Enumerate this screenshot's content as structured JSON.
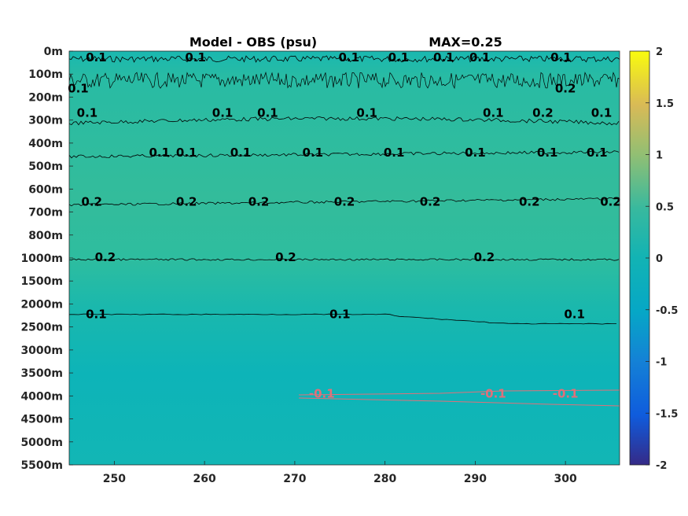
{
  "chart_data": {
    "type": "heatmap",
    "title": "Model - OBS (psu)",
    "title_right": "MAX=0.25",
    "x_ticks": [
      250,
      260,
      270,
      280,
      290,
      300
    ],
    "xlim": [
      245,
      306
    ],
    "y_ticks": [
      "0m",
      "100m",
      "200m",
      "300m",
      "400m",
      "500m",
      "600m",
      "700m",
      "800m",
      "1000m",
      "1500m",
      "2000m",
      "2500m",
      "3000m",
      "3500m",
      "4000m",
      "4500m",
      "5000m",
      "5500m"
    ],
    "colorbar": {
      "ticks": [
        "2",
        "1.5",
        "1",
        "0.5",
        "0",
        "-0.5",
        "-1",
        "-1.5",
        "-2"
      ],
      "range": [
        -2,
        2
      ],
      "colormap": "parula"
    },
    "contours": [
      {
        "level": "0.1",
        "color": "#000000",
        "depth": "0m",
        "labels": [
          {
            "text": "0.1",
            "x": 248,
            "depth": "0m"
          },
          {
            "text": "0.1",
            "x": 259,
            "depth": "0m"
          },
          {
            "text": "0.1",
            "x": 276,
            "depth": "0m"
          },
          {
            "text": "0.1",
            "x": 281.5,
            "depth": "0m"
          },
          {
            "text": "0.1",
            "x": 286.5,
            "depth": "0m"
          },
          {
            "text": "0.1",
            "x": 290.5,
            "depth": "0m"
          },
          {
            "text": "0.1",
            "x": 299.5,
            "depth": "0m"
          }
        ]
      },
      {
        "level": "0.1",
        "color": "#000000",
        "depth": "100m-200m",
        "labels": [
          {
            "text": "0.1",
            "x": 246,
            "depth": "200m"
          }
        ]
      },
      {
        "level": "0.2",
        "color": "#000000",
        "depth": "100m-200m",
        "labels": [
          {
            "text": "0.2",
            "x": 300,
            "depth": "200m"
          }
        ]
      },
      {
        "level": "0.1",
        "color": "#000000",
        "depth": "300m",
        "labels": [
          {
            "text": "0.1",
            "x": 247,
            "depth": "300m"
          },
          {
            "text": "0.1",
            "x": 262,
            "depth": "300m"
          },
          {
            "text": "0.1",
            "x": 267,
            "depth": "300m"
          },
          {
            "text": "0.1",
            "x": 278,
            "depth": "300m"
          },
          {
            "text": "0.1",
            "x": 292,
            "depth": "300m"
          },
          {
            "text": "0.1",
            "x": 304,
            "depth": "300m"
          }
        ]
      },
      {
        "level": "0.2",
        "color": "#000000",
        "depth": "300m",
        "labels": [
          {
            "text": "0.2",
            "x": 297.5,
            "depth": "300m"
          }
        ]
      },
      {
        "level": "0.1",
        "color": "#000000",
        "depth": "500m",
        "labels": [
          {
            "text": "0.1",
            "x": 255,
            "depth": "500m"
          },
          {
            "text": "0.1",
            "x": 258,
            "depth": "500m"
          },
          {
            "text": "0.1",
            "x": 264,
            "depth": "500m"
          },
          {
            "text": "0.1",
            "x": 272,
            "depth": "500m"
          },
          {
            "text": "0.1",
            "x": 281,
            "depth": "500m"
          },
          {
            "text": "0.1",
            "x": 290,
            "depth": "500m"
          },
          {
            "text": "0.1",
            "x": 298,
            "depth": "500m"
          },
          {
            "text": "0.1",
            "x": 303.5,
            "depth": "500m"
          }
        ]
      },
      {
        "level": "0.2",
        "color": "#000000",
        "depth": "700m",
        "labels": [
          {
            "text": "0.2",
            "x": 247.5,
            "depth": "700m"
          },
          {
            "text": "0.2",
            "x": 258,
            "depth": "700m"
          },
          {
            "text": "0.2",
            "x": 266,
            "depth": "700m"
          },
          {
            "text": "0.2",
            "x": 275.5,
            "depth": "700m"
          },
          {
            "text": "0.2",
            "x": 285,
            "depth": "700m"
          },
          {
            "text": "0.2",
            "x": 296,
            "depth": "700m"
          },
          {
            "text": "0.2",
            "x": 305,
            "depth": "700m"
          }
        ]
      },
      {
        "level": "0.2",
        "color": "#000000",
        "depth": "1000m",
        "labels": [
          {
            "text": "0.2",
            "x": 249,
            "depth": "1000m"
          },
          {
            "text": "0.2",
            "x": 269,
            "depth": "1000m"
          },
          {
            "text": "0.2",
            "x": 291,
            "depth": "1000m"
          }
        ]
      },
      {
        "level": "0.1",
        "color": "#000000",
        "depth": "2500m",
        "labels": [
          {
            "text": "0.1",
            "x": 248,
            "depth": "2500m"
          },
          {
            "text": "0.1",
            "x": 275,
            "depth": "2500m"
          },
          {
            "text": "0.1",
            "x": 301,
            "depth": "2500m"
          }
        ]
      },
      {
        "level": "-0.1",
        "color": "#e0707a",
        "depth": "4000m",
        "labels": [
          {
            "text": "-0.1",
            "x": 273,
            "depth": "4000m"
          },
          {
            "text": "-0.1",
            "x": 292,
            "depth": "4000m"
          },
          {
            "text": "-0.1",
            "x": 300,
            "depth": "4000m"
          }
        ]
      }
    ]
  }
}
